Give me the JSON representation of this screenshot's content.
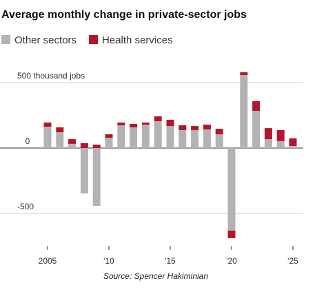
{
  "chart_data": {
    "type": "stacked-bar",
    "title": "Average monthly change in private-sector jobs",
    "source": "Source: Spencer Hakiminian",
    "x": [
      2005,
      2006,
      2007,
      2008,
      2009,
      2010,
      2011,
      2012,
      2013,
      2014,
      2015,
      2016,
      2017,
      2018,
      2019,
      2020,
      2021,
      2022,
      2023,
      2024,
      2025
    ],
    "series": [
      {
        "name": "Other sectors",
        "color": "#b3b3b3",
        "values": [
          163,
          121,
          32,
          -347,
          -442,
          79,
          174,
          158,
          179,
          205,
          168,
          137,
          137,
          142,
          105,
          -631,
          558,
          284,
          68,
          53,
          16
        ]
      },
      {
        "name": "Health services",
        "color": "#b5142b",
        "values": [
          32,
          37,
          36,
          37,
          26,
          26,
          21,
          26,
          16,
          37,
          48,
          37,
          31,
          37,
          42,
          -58,
          21,
          74,
          84,
          84,
          58
        ]
      }
    ],
    "xlim": [
      2004,
      2026
    ],
    "xticks": [
      {
        "value": 2005,
        "label": "2005"
      },
      {
        "value": 2010,
        "label": "'10"
      },
      {
        "value": 2015,
        "label": "'15"
      },
      {
        "value": 2020,
        "label": "'20"
      },
      {
        "value": 2025,
        "label": "'25"
      }
    ],
    "ylim": [
      -760,
      600
    ],
    "yticks": [
      {
        "value": 500,
        "label": "500 thousand jobs"
      },
      0,
      {
        "value": -500,
        "label": "-500"
      }
    ],
    "grid": true
  }
}
